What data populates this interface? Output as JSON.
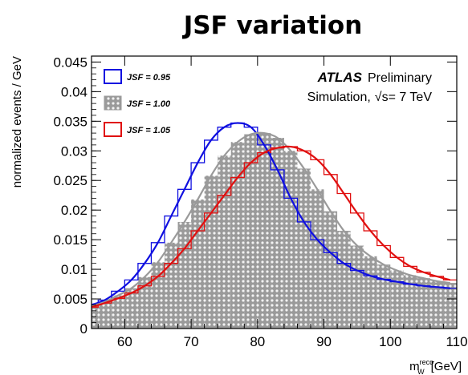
{
  "page_title": "JSF variation",
  "chart_data": {
    "type": "line",
    "xlabel": "m_W^reco [GeV]",
    "xlabel_main": "m",
    "xlabel_sub": "W",
    "xlabel_sup": "reco",
    "xlabel_unit": "[GeV]",
    "ylabel": "normalized events / GeV",
    "xlim": [
      55,
      110
    ],
    "ylim": [
      0,
      0.046
    ],
    "xticks": [
      60,
      70,
      80,
      90,
      100,
      110
    ],
    "xtick_labels": [
      "60",
      "70",
      "80",
      "90",
      "100",
      "110"
    ],
    "yticks": [
      0,
      0.005,
      0.01,
      0.015,
      0.02,
      0.025,
      0.03,
      0.035,
      0.04,
      0.045
    ],
    "ytick_labels": [
      "0",
      "0.005",
      "0.01",
      "0.015",
      "0.02",
      "0.025",
      "0.03",
      "0.035",
      "0.04",
      "0.045"
    ],
    "annotation": {
      "experiment": "ATLAS",
      "status": "Preliminary",
      "line2_prefix": "Simulation,",
      "line2_energy": "s= 7 TeV"
    },
    "legend": {
      "placement": "top-left",
      "entries": [
        {
          "label": "JSF = 0.95",
          "style": "line-box",
          "color": "#1010e0"
        },
        {
          "label": "JSF = 1.00",
          "style": "filled-dotted",
          "color": "#9a9a9a"
        },
        {
          "label": "JSF = 1.05",
          "style": "line-box",
          "color": "#e01010"
        }
      ]
    },
    "series": [
      {
        "name": "JSF = 0.95",
        "color": "#1010e0",
        "style": "histogram-and-fit",
        "x": [
          55,
          57,
          59,
          61,
          63,
          65,
          67,
          69,
          71,
          73,
          75,
          77,
          79,
          81,
          83,
          85,
          87,
          89,
          91,
          93,
          95,
          97,
          99,
          101,
          103,
          105,
          107,
          109
        ],
        "y": [
          0.004,
          0.0048,
          0.0063,
          0.0082,
          0.011,
          0.0145,
          0.019,
          0.0235,
          0.028,
          0.0318,
          0.034,
          0.0347,
          0.034,
          0.031,
          0.0268,
          0.022,
          0.018,
          0.015,
          0.0128,
          0.011,
          0.0098,
          0.0089,
          0.0083,
          0.0079,
          0.0075,
          0.0072,
          0.007,
          0.0068
        ]
      },
      {
        "name": "JSF = 1.00",
        "color": "#9a9a9a",
        "style": "filled-histogram-and-fit",
        "x": [
          55,
          57,
          59,
          61,
          63,
          65,
          67,
          69,
          71,
          73,
          75,
          77,
          79,
          81,
          83,
          85,
          87,
          89,
          91,
          93,
          95,
          97,
          99,
          101,
          103,
          105,
          107,
          109
        ],
        "y": [
          0.0038,
          0.0045,
          0.0056,
          0.0068,
          0.0087,
          0.0112,
          0.0145,
          0.018,
          0.0218,
          0.0258,
          0.0292,
          0.0315,
          0.0328,
          0.033,
          0.0322,
          0.03,
          0.027,
          0.0235,
          0.0198,
          0.0165,
          0.014,
          0.0122,
          0.0108,
          0.0098,
          0.009,
          0.0085,
          0.008,
          0.0077
        ]
      },
      {
        "name": "JSF = 1.05",
        "color": "#e01010",
        "style": "histogram-and-fit",
        "x": [
          55,
          57,
          59,
          61,
          63,
          65,
          67,
          69,
          71,
          73,
          75,
          77,
          79,
          81,
          83,
          85,
          87,
          89,
          91,
          93,
          95,
          97,
          99,
          101,
          103,
          105,
          107,
          109
        ],
        "y": [
          0.0036,
          0.0043,
          0.0051,
          0.006,
          0.0072,
          0.0088,
          0.011,
          0.0135,
          0.0165,
          0.0195,
          0.0225,
          0.0255,
          0.028,
          0.0297,
          0.0305,
          0.0307,
          0.03,
          0.0285,
          0.026,
          0.0228,
          0.0195,
          0.0165,
          0.014,
          0.012,
          0.0105,
          0.0095,
          0.0088,
          0.0082
        ]
      }
    ]
  }
}
